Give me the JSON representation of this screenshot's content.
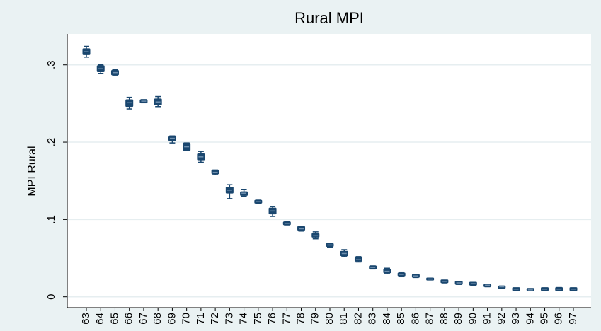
{
  "chart_data": {
    "type": "box",
    "title": "Rural MPI",
    "y_label": "MPI Rural",
    "categories": [
      "63",
      "64",
      "65",
      "66",
      "67",
      "68",
      "69",
      "70",
      "71",
      "72",
      "73",
      "74",
      "75",
      "76",
      "77",
      "78",
      "79",
      "80",
      "81",
      "82",
      "83",
      "84",
      "85",
      "86",
      "87",
      "88",
      "89",
      "90",
      "91",
      "92",
      "93",
      "94",
      "95",
      "96",
      "97"
    ],
    "min": [
      0.31,
      0.289,
      0.286,
      0.243,
      0.251,
      0.246,
      0.199,
      0.189,
      0.174,
      0.158,
      0.127,
      0.13,
      0.121,
      0.104,
      0.093,
      0.085,
      0.075,
      0.064,
      0.052,
      0.045,
      0.036,
      0.03,
      0.026,
      0.025,
      0.022,
      0.018,
      0.016,
      0.015,
      0.013,
      0.011,
      0.009,
      0.008,
      0.008,
      0.008,
      0.009
    ],
    "q1": [
      0.314,
      0.292,
      0.288,
      0.247,
      0.252,
      0.249,
      0.203,
      0.19,
      0.178,
      0.16,
      0.135,
      0.132,
      0.122,
      0.108,
      0.094,
      0.087,
      0.078,
      0.066,
      0.054,
      0.047,
      0.037,
      0.032,
      0.028,
      0.026,
      0.0225,
      0.019,
      0.017,
      0.016,
      0.014,
      0.012,
      0.009,
      0.009,
      0.009,
      0.009,
      0.009
    ],
    "median": [
      0.317,
      0.295,
      0.29,
      0.251,
      0.253,
      0.252,
      0.205,
      0.194,
      0.181,
      0.161,
      0.138,
      0.134,
      0.123,
      0.111,
      0.095,
      0.088,
      0.079,
      0.067,
      0.056,
      0.048,
      0.038,
      0.033,
      0.029,
      0.027,
      0.023,
      0.02,
      0.018,
      0.017,
      0.015,
      0.013,
      0.01,
      0.009,
      0.01,
      0.01,
      0.01
    ],
    "q3": [
      0.32,
      0.298,
      0.292,
      0.254,
      0.254,
      0.255,
      0.207,
      0.198,
      0.184,
      0.163,
      0.141,
      0.135,
      0.124,
      0.114,
      0.096,
      0.09,
      0.081,
      0.068,
      0.058,
      0.05,
      0.039,
      0.035,
      0.03,
      0.028,
      0.0235,
      0.021,
      0.019,
      0.018,
      0.015,
      0.013,
      0.011,
      0.01,
      0.011,
      0.011,
      0.011
    ],
    "max": [
      0.324,
      0.3,
      0.294,
      0.258,
      0.255,
      0.259,
      0.208,
      0.199,
      0.188,
      0.164,
      0.145,
      0.139,
      0.125,
      0.117,
      0.097,
      0.091,
      0.084,
      0.069,
      0.061,
      0.052,
      0.04,
      0.037,
      0.032,
      0.029,
      0.024,
      0.021,
      0.019,
      0.018,
      0.016,
      0.014,
      0.011,
      0.01,
      0.011,
      0.012,
      0.011
    ],
    "color": "#1a476f",
    "median_color": "#6f8fae",
    "ylim": [
      -0.014,
      0.34
    ],
    "yticks": [
      0,
      {
        "value": 0.1,
        "label": ".1"
      },
      {
        "value": 0.2,
        "label": ".2"
      },
      {
        "value": 0.3,
        "label": ".3"
      }
    ],
    "grid": true
  }
}
